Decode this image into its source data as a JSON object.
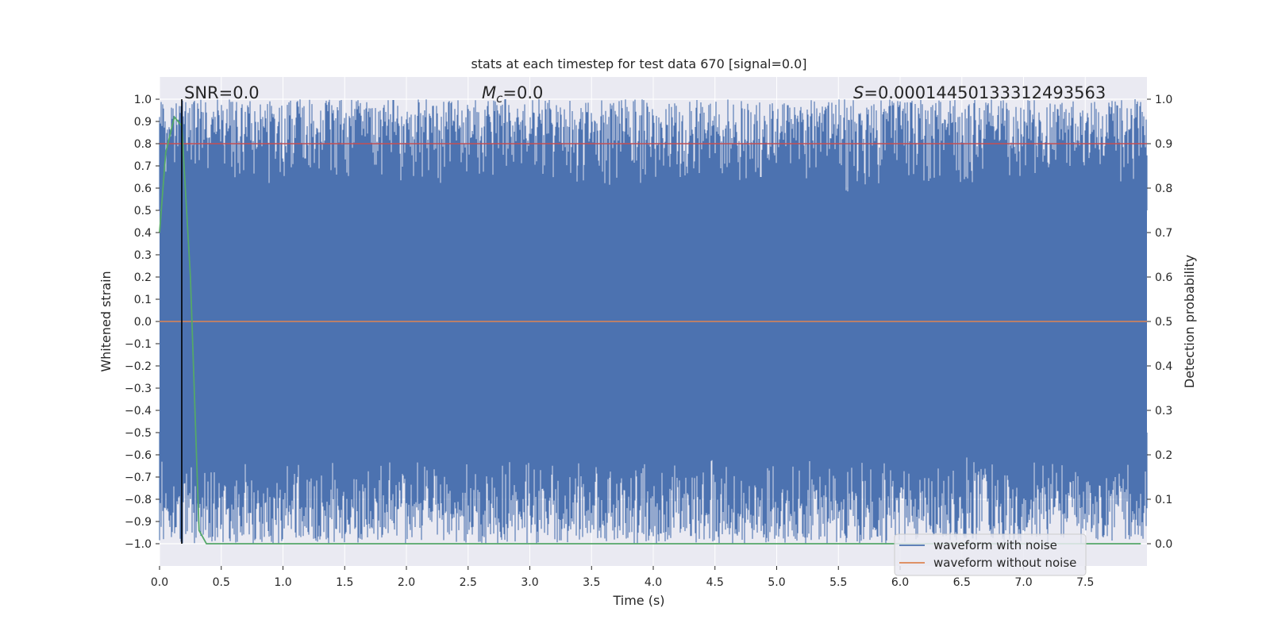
{
  "chart_data": {
    "type": "line",
    "title": "stats at each timestep for test data 670 [signal=0.0]",
    "xlabel": "Time (s)",
    "ylabel_left": "Whitened strain",
    "ylabel_right": "Detection probability",
    "xlim": [
      0.0,
      8.0
    ],
    "ylim_left": [
      -1.1,
      1.1
    ],
    "ylim_right": [
      -0.05,
      1.05
    ],
    "x_ticks": [
      "0.0",
      "0.5",
      "1.0",
      "1.5",
      "2.0",
      "2.5",
      "3.0",
      "3.5",
      "4.0",
      "4.5",
      "5.0",
      "5.5",
      "6.0",
      "6.5",
      "7.0",
      "7.5"
    ],
    "y_ticks_left": [
      "1.0",
      "0.9",
      "0.8",
      "0.7",
      "0.6",
      "0.5",
      "0.4",
      "0.3",
      "0.2",
      "0.1",
      "0.0",
      "−0.1",
      "−0.2",
      "−0.3",
      "−0.4",
      "−0.5",
      "−0.6",
      "−0.7",
      "−0.8",
      "−0.9",
      "−1.0"
    ],
    "y_ticks_right": [
      "1.0",
      "0.9",
      "0.8",
      "0.7",
      "0.6",
      "0.5",
      "0.4",
      "0.3",
      "0.2",
      "0.1",
      "0.0"
    ],
    "annotations": {
      "snr": "SNR=0.0",
      "mc_symbol": "M",
      "mc_sub": "c",
      "mc_value": "=0.0",
      "s_symbol": "S",
      "s_value": "=0.00014450133312493563"
    },
    "series": [
      {
        "name": "waveform with noise",
        "color": "#4c72b0",
        "description": "whitened noisy strain, dense oscillation spanning roughly -1.0 to 1.0"
      },
      {
        "name": "waveform without noise",
        "color": "#dd8452",
        "values_constant": 0.0
      },
      {
        "name": "detection probability",
        "color": "#55a868",
        "points": [
          [
            0.0,
            0.7
          ],
          [
            0.05,
            0.88
          ],
          [
            0.12,
            0.96
          ],
          [
            0.18,
            0.94
          ],
          [
            0.25,
            0.6
          ],
          [
            0.32,
            0.03
          ],
          [
            0.38,
            0.0
          ],
          [
            7.95,
            0.0
          ]
        ]
      },
      {
        "name": "threshold",
        "color": "#c44e52",
        "value_right": 0.9
      },
      {
        "name": "peak marker",
        "color": "#000000",
        "x": 0.18
      }
    ],
    "legend": {
      "position": "lower-right",
      "entries": [
        "waveform with noise",
        "waveform without noise"
      ]
    },
    "colors": {
      "background": "#eaeaf2",
      "grid": "#ffffff",
      "noise": "#4c72b0",
      "clean": "#dd8452",
      "prob": "#55a868",
      "threshold": "#c44e52",
      "marker": "#000000"
    }
  }
}
